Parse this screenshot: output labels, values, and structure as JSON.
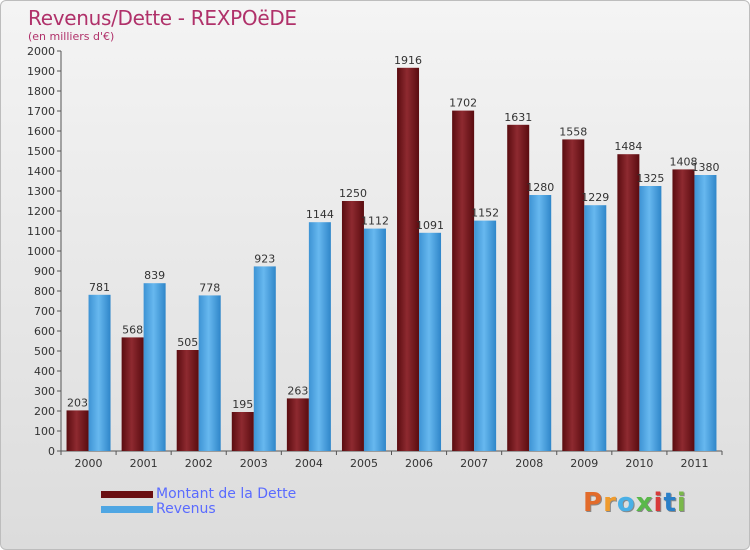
{
  "title": "Revenus/Dette - REXPOëDE",
  "subtitle": "(en milliers d'€)",
  "colors": {
    "dette": "#7a1f25",
    "revenus": "#4fa6e3",
    "title": "#b0316a",
    "legend_text": "#5a6bff"
  },
  "legend": [
    {
      "label": "Montant de la Dette",
      "color": "#6b0f12"
    },
    {
      "label": "Revenus",
      "color": "#4fa6e3"
    }
  ],
  "logo": {
    "letters": [
      "P",
      "r",
      "o",
      "x",
      "i",
      "t",
      "i"
    ],
    "colors": [
      "#e26b2b",
      "#ef9b2d",
      "#4ab0e6",
      "#5ab84a",
      "#d83a3a",
      "#2a7fc8",
      "#7ab84a"
    ]
  },
  "chart_data": {
    "type": "bar",
    "categories": [
      "2000",
      "2001",
      "2002",
      "2003",
      "2004",
      "2005",
      "2006",
      "2007",
      "2008",
      "2009",
      "2010",
      "2011"
    ],
    "series": [
      {
        "name": "Montant de la Dette",
        "values": [
          203,
          568,
          505,
          195,
          263,
          1250,
          1916,
          1702,
          1631,
          1558,
          1484,
          1408
        ]
      },
      {
        "name": "Revenus",
        "values": [
          781,
          839,
          778,
          923,
          1144,
          1112,
          1091,
          1152,
          1280,
          1229,
          1325,
          1380
        ]
      }
    ],
    "y_ticks": [
      "0",
      "100",
      "200",
      "300",
      "400",
      "500",
      "600",
      "700",
      "800",
      "900",
      "1000",
      "1100",
      "1200",
      "1300",
      "1400",
      "1500",
      "1600",
      "1700",
      "1800",
      "1900",
      "2000"
    ],
    "ylim": [
      0,
      2000
    ],
    "grid": false,
    "legend_position": "bottom-left"
  }
}
